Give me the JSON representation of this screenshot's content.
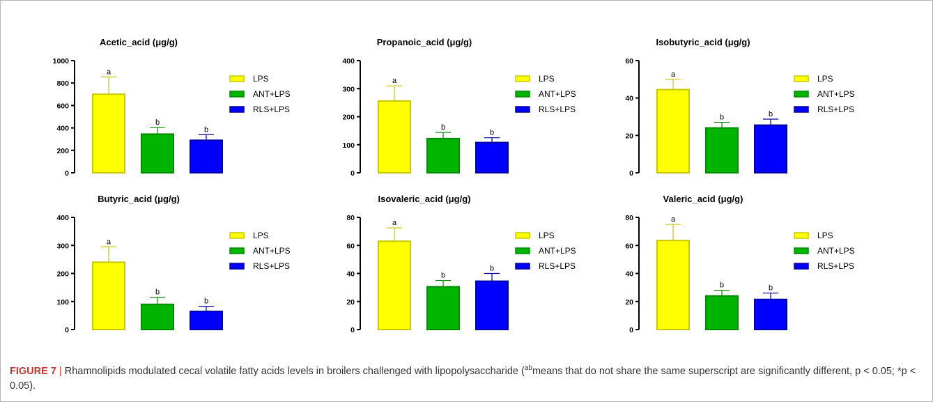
{
  "caption": {
    "label": "FIGURE 7",
    "separator": "|",
    "lead": "Rhamnolipids modulated cecal volatile fatty acids levels in broilers challenged with lipopolysaccharide (",
    "superscript": "ab",
    "tail": "means that do not share the same superscript are significantly different, p < 0.05; *p < 0.05)."
  },
  "colors": {
    "LPS": {
      "fill": "#ffff00",
      "stroke": "#c8c800"
    },
    "ANT+LPS": {
      "fill": "#00b400",
      "stroke": "#008a00"
    },
    "RLS+LPS": {
      "fill": "#0000ff",
      "stroke": "#0000a0"
    }
  },
  "chart_data": [
    {
      "type": "bar",
      "title": "Acetic_acid (μg/g)",
      "categories": [
        "LPS",
        "ANT+LPS",
        "RLS+LPS"
      ],
      "values": [
        700,
        345,
        290
      ],
      "errors": [
        155,
        60,
        50
      ],
      "letters": [
        "a",
        "b",
        "b"
      ],
      "ylim": [
        0,
        1000
      ],
      "yticks": [
        0,
        200,
        400,
        600,
        800,
        1000
      ],
      "legend": [
        "LPS",
        "ANT+LPS",
        "RLS+LPS"
      ]
    },
    {
      "type": "bar",
      "title": "Propanoic_acid (μg/g)",
      "categories": [
        "LPS",
        "ANT+LPS",
        "RLS+LPS"
      ],
      "values": [
        256,
        122,
        108
      ],
      "errors": [
        54,
        22,
        17
      ],
      "letters": [
        "a",
        "b",
        "b"
      ],
      "ylim": [
        0,
        400
      ],
      "yticks": [
        0,
        100,
        200,
        300,
        400
      ],
      "legend": [
        "LPS",
        "ANT+LPS",
        "RLS+LPS"
      ]
    },
    {
      "type": "bar",
      "title": "Isobutyric_acid (μg/g)",
      "categories": [
        "LPS",
        "ANT+LPS",
        "RLS+LPS"
      ],
      "values": [
        44.5,
        24,
        25.5
      ],
      "errors": [
        5.5,
        3,
        3.2
      ],
      "letters": [
        "a",
        "b",
        "b"
      ],
      "ylim": [
        0,
        60
      ],
      "yticks": [
        0,
        20,
        40,
        60
      ],
      "legend": [
        "LPS",
        "ANT+LPS",
        "RLS+LPS"
      ]
    },
    {
      "type": "bar",
      "title": "Butyric_acid (μg/g)",
      "categories": [
        "LPS",
        "ANT+LPS",
        "RLS+LPS"
      ],
      "values": [
        240,
        90,
        65
      ],
      "errors": [
        55,
        25,
        18
      ],
      "letters": [
        "a",
        "b",
        "b"
      ],
      "ylim": [
        0,
        400
      ],
      "yticks": [
        0,
        100,
        200,
        300,
        400
      ],
      "legend": [
        "LPS",
        "ANT+LPS",
        "RLS+LPS"
      ]
    },
    {
      "type": "bar",
      "title": "Isovaleric_acid (μg/g)",
      "categories": [
        "LPS",
        "ANT+LPS",
        "RLS+LPS"
      ],
      "values": [
        63,
        30.5,
        34.5
      ],
      "errors": [
        9.5,
        4.5,
        5.5
      ],
      "letters": [
        "a",
        "b",
        "b"
      ],
      "ylim": [
        0,
        80
      ],
      "yticks": [
        0,
        20,
        40,
        60,
        80
      ],
      "legend": [
        "LPS",
        "ANT+LPS",
        "RLS+LPS"
      ]
    },
    {
      "type": "bar",
      "title": "Valeric_acid (μg/g)",
      "categories": [
        "LPS",
        "ANT+LPS",
        "RLS+LPS"
      ],
      "values": [
        63.5,
        24,
        21.5
      ],
      "errors": [
        11.5,
        4,
        4.5
      ],
      "letters": [
        "a",
        "b",
        "b"
      ],
      "ylim": [
        0,
        80
      ],
      "yticks": [
        0,
        20,
        40,
        60,
        80
      ],
      "legend": [
        "LPS",
        "ANT+LPS",
        "RLS+LPS"
      ]
    }
  ]
}
